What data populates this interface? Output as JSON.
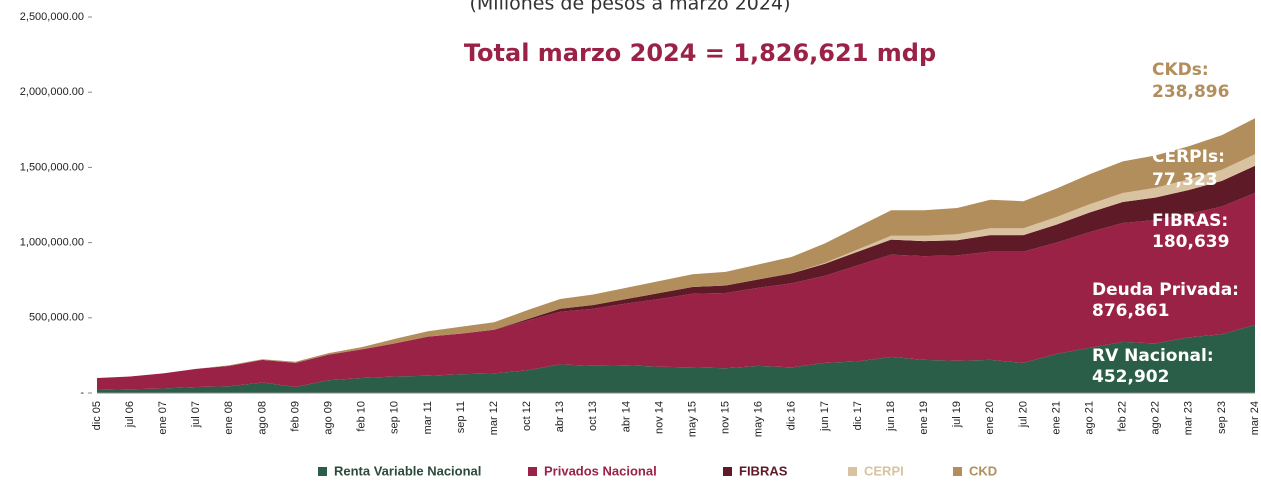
{
  "chart_data": {
    "type": "stacked_area",
    "subtitle": "(Millones de pesos a marzo 2024)",
    "annotation": "Total marzo 2024 = 1,826,621 mdp",
    "categories": [
      "dic 05",
      "jul 06",
      "ene 07",
      "jul 07",
      "ene 08",
      "ago 08",
      "feb 09",
      "ago 09",
      "feb 10",
      "sep 10",
      "mar 11",
      "sep 11",
      "mar 12",
      "oct 12",
      "abr 13",
      "oct 13",
      "abr 14",
      "nov 14",
      "may 15",
      "nov 15",
      "may 16",
      "dic 16",
      "jun 17",
      "dic 17",
      "jun 18",
      "ene 19",
      "jul 19",
      "ene 20",
      "jul 20",
      "ene 21",
      "ago 21",
      "feb 22",
      "ago 22",
      "mar 23",
      "sep 23",
      "mar 24"
    ],
    "ylim": [
      0,
      2500000
    ],
    "yticks": [
      {
        "value": 0,
        "label": "-"
      },
      {
        "value": 500000,
        "label": "500,000.00"
      },
      {
        "value": 1000000,
        "label": "1,000,000.00"
      },
      {
        "value": 1500000,
        "label": "1,500,000.00"
      },
      {
        "value": 2000000,
        "label": "2,000,000.00"
      },
      {
        "value": 2500000,
        "label": "2,500,000.00"
      }
    ],
    "legend": "bottom",
    "series": [
      {
        "name": "Renta Variable Nacional",
        "end_label": "RV Nacional:",
        "color": "#2a5e48",
        "values": [
          20000,
          25000,
          30000,
          40000,
          45000,
          70000,
          40000,
          85000,
          100000,
          110000,
          115000,
          125000,
          130000,
          150000,
          190000,
          180000,
          185000,
          175000,
          170000,
          165000,
          180000,
          170000,
          200000,
          210000,
          240000,
          220000,
          215000,
          220000,
          200000,
          260000,
          300000,
          340000,
          330000,
          370000,
          390000,
          452902
        ],
        "value_labels": [
          null,
          null,
          null,
          null,
          null,
          null,
          null,
          null,
          null,
          null,
          null,
          null,
          null,
          null,
          null,
          null,
          null,
          null,
          null,
          null,
          null,
          null,
          null,
          null,
          null,
          null,
          null,
          null,
          null,
          null,
          null,
          null,
          null,
          null,
          null,
          "452,902"
        ]
      },
      {
        "name": "Privados Nacional",
        "end_label": "Deuda Privada:",
        "color": "#9b2247",
        "values": [
          80000,
          85000,
          100000,
          120000,
          135000,
          150000,
          160000,
          170000,
          190000,
          220000,
          260000,
          270000,
          290000,
          330000,
          350000,
          380000,
          410000,
          450000,
          490000,
          500000,
          520000,
          560000,
          580000,
          640000,
          680000,
          690000,
          700000,
          720000,
          740000,
          740000,
          770000,
          790000,
          820000,
          820000,
          850000,
          876861
        ],
        "value_labels": [
          null,
          null,
          null,
          null,
          null,
          null,
          null,
          null,
          null,
          null,
          null,
          null,
          null,
          null,
          null,
          null,
          null,
          null,
          null,
          null,
          null,
          null,
          null,
          null,
          null,
          null,
          null,
          null,
          null,
          null,
          null,
          null,
          null,
          null,
          null,
          "876,861"
        ]
      },
      {
        "name": "FIBRAS",
        "end_label": "FIBRAS:",
        "color": "#5e1a27",
        "values": [
          0,
          0,
          0,
          0,
          0,
          0,
          0,
          0,
          0,
          0,
          0,
          0,
          0,
          10000,
          20000,
          25000,
          30000,
          40000,
          45000,
          50000,
          55000,
          65000,
          80000,
          90000,
          100000,
          100000,
          100000,
          110000,
          110000,
          120000,
          130000,
          140000,
          150000,
          160000,
          170000,
          180639
        ],
        "value_labels": [
          null,
          null,
          null,
          null,
          null,
          null,
          null,
          null,
          null,
          null,
          null,
          null,
          null,
          null,
          null,
          null,
          null,
          null,
          null,
          null,
          null,
          null,
          null,
          null,
          null,
          null,
          null,
          null,
          null,
          null,
          null,
          null,
          null,
          null,
          null,
          "180,639"
        ]
      },
      {
        "name": "CERPI",
        "end_label": "CERPIs:",
        "color": "#d9c29f",
        "values": [
          0,
          0,
          0,
          0,
          0,
          0,
          0,
          0,
          0,
          0,
          0,
          0,
          0,
          0,
          0,
          0,
          0,
          0,
          0,
          0,
          0,
          0,
          5000,
          15000,
          25000,
          35000,
          40000,
          45000,
          45000,
          50000,
          55000,
          60000,
          65000,
          70000,
          75000,
          77323
        ],
        "value_labels": [
          null,
          null,
          null,
          null,
          null,
          null,
          null,
          null,
          null,
          null,
          null,
          null,
          null,
          null,
          null,
          null,
          null,
          null,
          null,
          null,
          null,
          null,
          null,
          null,
          null,
          null,
          null,
          null,
          null,
          null,
          null,
          null,
          null,
          null,
          null,
          "77,323"
        ]
      },
      {
        "name": "CKD",
        "end_label": "CKDs:",
        "color": "#b38e5d",
        "values": [
          0,
          0,
          0,
          0,
          5000,
          5000,
          8000,
          10000,
          15000,
          30000,
          35000,
          45000,
          50000,
          60000,
          65000,
          70000,
          75000,
          80000,
          85000,
          90000,
          100000,
          110000,
          130000,
          150000,
          170000,
          170000,
          175000,
          190000,
          180000,
          190000,
          200000,
          210000,
          215000,
          220000,
          230000,
          238896
        ],
        "value_labels": [
          null,
          null,
          null,
          null,
          null,
          null,
          null,
          null,
          null,
          null,
          null,
          null,
          null,
          null,
          null,
          null,
          null,
          null,
          null,
          null,
          null,
          null,
          null,
          null,
          null,
          null,
          null,
          null,
          null,
          null,
          null,
          null,
          null,
          null,
          null,
          "238,896"
        ]
      }
    ]
  }
}
